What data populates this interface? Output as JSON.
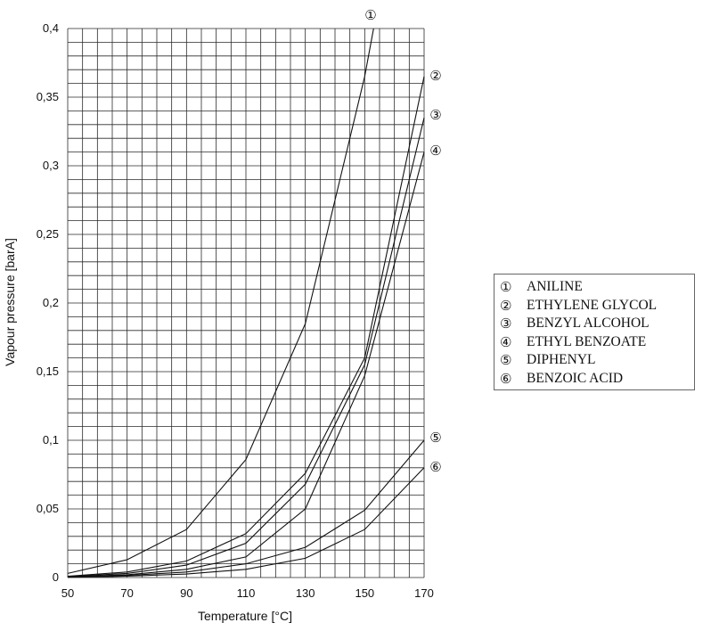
{
  "chart_data": {
    "type": "line",
    "xlabel": "Temperature [°C]",
    "ylabel": "Vapour pressure [barA]",
    "xlim": [
      50,
      170
    ],
    "ylim": [
      0,
      0.4
    ],
    "x_ticks": [
      "50",
      "70",
      "90",
      "110",
      "130",
      "150",
      "170"
    ],
    "y_ticks": [
      "0",
      "0,05",
      "0,1",
      "0,15",
      "0,2",
      "0,25",
      "0,3",
      "0,35",
      "0,4"
    ],
    "grid": true,
    "legend_position": "right",
    "series": [
      {
        "marker": "①",
        "name": "ANILINE",
        "x": [
          50,
          70,
          90,
          110,
          130,
          150,
          153
        ],
        "y": [
          0.003,
          0.013,
          0.035,
          0.086,
          0.185,
          0.365,
          0.4
        ]
      },
      {
        "marker": "②",
        "name": "ETHYLENE GLYCOL",
        "x": [
          50,
          70,
          90,
          110,
          130,
          150,
          170
        ],
        "y": [
          0.001,
          0.004,
          0.012,
          0.032,
          0.076,
          0.16,
          0.365
        ]
      },
      {
        "marker": "③",
        "name": "BENZYL ALCOHOL",
        "x": [
          50,
          70,
          90,
          110,
          130,
          150,
          170
        ],
        "y": [
          0.0008,
          0.003,
          0.009,
          0.025,
          0.068,
          0.155,
          0.335
        ]
      },
      {
        "marker": "④",
        "name": "ETHYL BENZOATE",
        "x": [
          50,
          70,
          90,
          110,
          130,
          150,
          170
        ],
        "y": [
          0.0005,
          0.002,
          0.006,
          0.015,
          0.05,
          0.147,
          0.31
        ]
      },
      {
        "marker": "⑤",
        "name": "DIPHENYL",
        "x": [
          50,
          70,
          90,
          110,
          130,
          150,
          170
        ],
        "y": [
          0.0003,
          0.0015,
          0.004,
          0.01,
          0.022,
          0.049,
          0.1
        ]
      },
      {
        "marker": "⑥",
        "name": "BENZOIC ACID",
        "x": [
          50,
          70,
          90,
          110,
          130,
          150,
          170
        ],
        "y": [
          0.0002,
          0.001,
          0.0025,
          0.006,
          0.014,
          0.035,
          0.08
        ]
      }
    ]
  }
}
